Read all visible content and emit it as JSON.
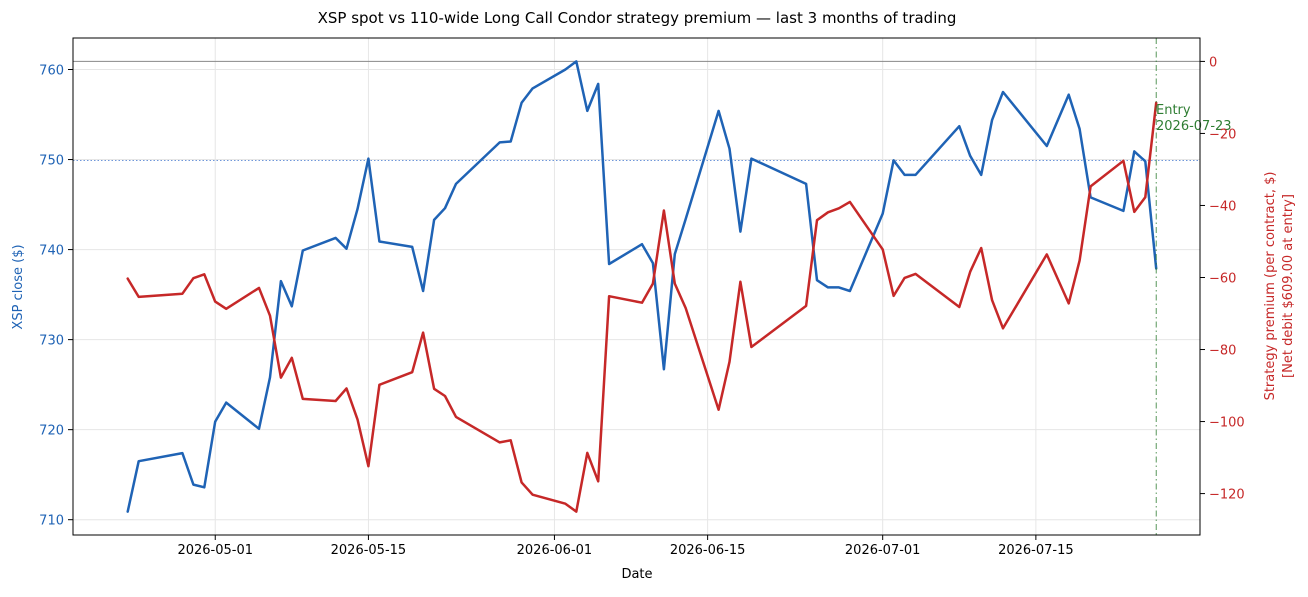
{
  "chart_data": {
    "type": "line",
    "title": "XSP spot vs 110-wide Long Call Condor strategy premium — last 3 months of trading",
    "xlabel": "Date",
    "ylabel": "XSP close ($)",
    "ylabel_right": "Strategy premium (per contract, $)",
    "ylabel_right_sub": "[Net debit $609.00 at entry]",
    "x_ticks": [
      "2026-05-01",
      "2026-05-15",
      "2026-06-01",
      "2026-06-15",
      "2026-07-01",
      "2026-07-15"
    ],
    "y_ticks_left": [
      710,
      720,
      730,
      740,
      750,
      760
    ],
    "y_ticks_right": [
      0,
      -20,
      -40,
      -60,
      -80,
      -100,
      -120
    ],
    "xlim": [
      "2026-04-18",
      "2026-07-30"
    ],
    "ylim_left": [
      708.3,
      763.5
    ],
    "ylim_right": [
      -131.5,
      6.5
    ],
    "grid": true,
    "colors": {
      "spot": "#1f63b5",
      "premium": "#c62828",
      "entry": "#2e7d32",
      "zero_line": "#888888",
      "ref_line": "#6f97d9"
    },
    "reference_spot": 749.9,
    "zero_line": 0,
    "entry_annotation": {
      "date": "2026-07-23",
      "label_line1": "Entry",
      "label_line2": "2026-07-23"
    },
    "series": [
      {
        "axis": "left",
        "color": "#1f63b5",
        "points": [
          [
            "2026-04-23",
            710.9
          ],
          [
            "2026-04-24",
            716.5
          ],
          [
            "2026-04-28",
            717.4
          ],
          [
            "2026-04-29",
            713.9
          ],
          [
            "2026-04-30",
            713.6
          ],
          [
            "2026-05-01",
            720.9
          ],
          [
            "2026-05-02",
            723.0
          ],
          [
            "2026-05-05",
            720.1
          ],
          [
            "2026-05-06",
            725.8
          ],
          [
            "2026-05-07",
            736.5
          ],
          [
            "2026-05-08",
            733.7
          ],
          [
            "2026-05-09",
            739.9
          ],
          [
            "2026-05-12",
            741.3
          ],
          [
            "2026-05-13",
            740.1
          ],
          [
            "2026-05-14",
            744.5
          ],
          [
            "2026-05-15",
            750.1
          ],
          [
            "2026-05-16",
            740.9
          ],
          [
            "2026-05-19",
            740.3
          ],
          [
            "2026-05-20",
            735.4
          ],
          [
            "2026-05-21",
            743.3
          ],
          [
            "2026-05-22",
            744.6
          ],
          [
            "2026-05-23",
            747.3
          ],
          [
            "2026-05-27",
            751.9
          ],
          [
            "2026-05-28",
            752.0
          ],
          [
            "2026-05-29",
            756.3
          ],
          [
            "2026-05-30",
            757.9
          ],
          [
            "2026-06-02",
            760.0
          ],
          [
            "2026-06-03",
            760.9
          ],
          [
            "2026-06-04",
            755.4
          ],
          [
            "2026-06-05",
            758.4
          ],
          [
            "2026-06-06",
            738.4
          ],
          [
            "2026-06-09",
            740.6
          ],
          [
            "2026-06-10",
            738.5
          ],
          [
            "2026-06-11",
            726.7
          ],
          [
            "2026-06-12",
            739.5
          ],
          [
            "2026-06-13",
            743.4
          ],
          [
            "2026-06-16",
            755.4
          ],
          [
            "2026-06-17",
            751.2
          ],
          [
            "2026-06-18",
            742.0
          ],
          [
            "2026-06-19",
            750.1
          ],
          [
            "2026-06-24",
            747.3
          ],
          [
            "2026-06-25",
            736.6
          ],
          [
            "2026-06-26",
            735.8
          ],
          [
            "2026-06-27",
            735.8
          ],
          [
            "2026-06-28",
            735.4
          ],
          [
            "2026-07-01",
            744.0
          ],
          [
            "2026-07-02",
            749.9
          ],
          [
            "2026-07-03",
            748.3
          ],
          [
            "2026-07-04",
            748.3
          ],
          [
            "2026-07-08",
            753.7
          ],
          [
            "2026-07-09",
            750.4
          ],
          [
            "2026-07-10",
            748.3
          ],
          [
            "2026-07-11",
            754.4
          ],
          [
            "2026-07-12",
            757.5
          ],
          [
            "2026-07-16",
            751.5
          ],
          [
            "2026-07-18",
            757.2
          ],
          [
            "2026-07-19",
            753.4
          ],
          [
            "2026-07-20",
            745.8
          ],
          [
            "2026-07-23",
            744.3
          ],
          [
            "2026-07-24",
            750.9
          ],
          [
            "2026-07-25",
            749.8
          ],
          [
            "2026-07-26",
            737.9
          ]
        ]
      },
      {
        "axis": "right",
        "color": "#c62828",
        "points": [
          [
            "2026-04-23",
            -60.3
          ],
          [
            "2026-04-24",
            -65.4
          ],
          [
            "2026-04-28",
            -64.5
          ],
          [
            "2026-04-29",
            -60.2
          ],
          [
            "2026-04-30",
            -59.1
          ],
          [
            "2026-05-01",
            -66.7
          ],
          [
            "2026-05-02",
            -68.7
          ],
          [
            "2026-05-05",
            -62.9
          ],
          [
            "2026-05-06",
            -70.6
          ],
          [
            "2026-05-07",
            -87.8
          ],
          [
            "2026-05-08",
            -82.3
          ],
          [
            "2026-05-09",
            -93.7
          ],
          [
            "2026-05-12",
            -94.3
          ],
          [
            "2026-05-13",
            -90.8
          ],
          [
            "2026-05-14",
            -99.4
          ],
          [
            "2026-05-15",
            -112.4
          ],
          [
            "2026-05-16",
            -89.8
          ],
          [
            "2026-05-19",
            -86.3
          ],
          [
            "2026-05-20",
            -75.3
          ],
          [
            "2026-05-21",
            -90.9
          ],
          [
            "2026-05-22",
            -92.9
          ],
          [
            "2026-05-23",
            -98.7
          ],
          [
            "2026-05-27",
            -105.8
          ],
          [
            "2026-05-28",
            -105.2
          ],
          [
            "2026-05-29",
            -116.9
          ],
          [
            "2026-05-30",
            -120.3
          ],
          [
            "2026-06-02",
            -122.8
          ],
          [
            "2026-06-03",
            -125.0
          ],
          [
            "2026-06-04",
            -108.7
          ],
          [
            "2026-06-05",
            -116.6
          ],
          [
            "2026-06-06",
            -65.2
          ],
          [
            "2026-06-09",
            -67.0
          ],
          [
            "2026-06-10",
            -61.7
          ],
          [
            "2026-06-11",
            -41.4
          ],
          [
            "2026-06-12",
            -61.7
          ],
          [
            "2026-06-13",
            -68.5
          ],
          [
            "2026-06-16",
            -96.7
          ],
          [
            "2026-06-17",
            -83.4
          ],
          [
            "2026-06-18",
            -61.2
          ],
          [
            "2026-06-19",
            -79.3
          ],
          [
            "2026-06-24",
            -67.9
          ],
          [
            "2026-06-25",
            -44.1
          ],
          [
            "2026-06-26",
            -41.9
          ],
          [
            "2026-06-27",
            -40.8
          ],
          [
            "2026-06-28",
            -39.0
          ],
          [
            "2026-07-01",
            -52.2
          ],
          [
            "2026-07-02",
            -65.1
          ],
          [
            "2026-07-03",
            -60.1
          ],
          [
            "2026-07-04",
            -59.0
          ],
          [
            "2026-07-08",
            -68.2
          ],
          [
            "2026-07-09",
            -58.4
          ],
          [
            "2026-07-10",
            -51.8
          ],
          [
            "2026-07-11",
            -66.3
          ],
          [
            "2026-07-12",
            -74.1
          ],
          [
            "2026-07-16",
            -53.6
          ],
          [
            "2026-07-18",
            -67.2
          ],
          [
            "2026-07-19",
            -55.3
          ],
          [
            "2026-07-20",
            -34.7
          ],
          [
            "2026-07-23",
            -27.6
          ],
          [
            "2026-07-24",
            -41.8
          ],
          [
            "2026-07-25",
            -37.7
          ],
          [
            "2026-07-26",
            -11.5
          ]
        ]
      }
    ]
  }
}
